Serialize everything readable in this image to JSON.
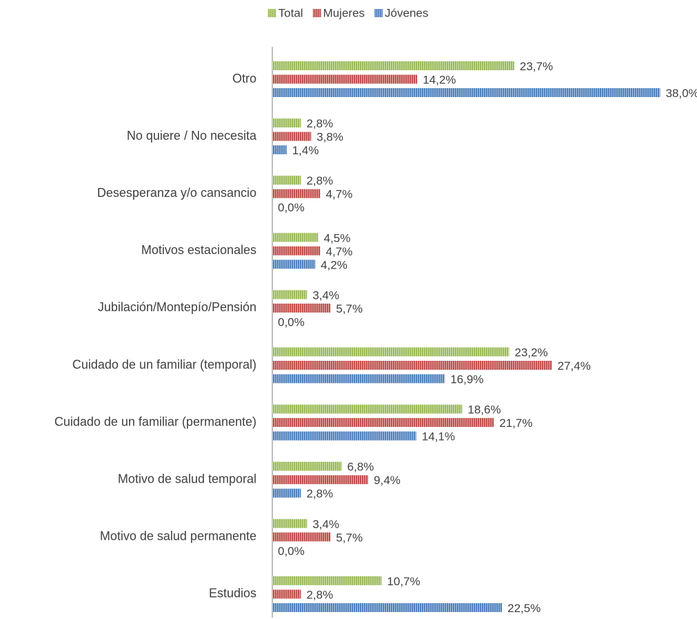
{
  "chart_data": {
    "type": "bar",
    "orientation": "horizontal",
    "categories": [
      "Otro",
      "No quiere / No necesita",
      "Desesperanza y/o cansancio",
      "Motivos estacionales",
      "Jubilación/Montepío/Pensión",
      "Cuidado de un familiar (temporal)",
      "Cuidado de un familiar (permanente)",
      "Motivo de salud temporal",
      "Motivo de salud permanente",
      "Estudios"
    ],
    "series": [
      {
        "name": "Total",
        "color": "#9bbb59",
        "values": [
          23.7,
          2.8,
          2.8,
          4.5,
          3.4,
          23.2,
          18.6,
          6.8,
          3.4,
          10.7
        ],
        "value_labels": [
          "23,7%",
          "2,8%",
          "2,8%",
          "4,5%",
          "3,4%",
          "23,2%",
          "18,6%",
          "6,8%",
          "3,4%",
          "10,7%"
        ]
      },
      {
        "name": "Mujeres",
        "color": "#c0504d",
        "values": [
          14.2,
          3.8,
          4.7,
          4.7,
          5.7,
          27.4,
          21.7,
          9.4,
          5.7,
          2.8
        ],
        "value_labels": [
          "14,2%",
          "3,8%",
          "4,7%",
          "4,7%",
          "5,7%",
          "27,4%",
          "21,7%",
          "9,4%",
          "5,7%",
          "2,8%"
        ]
      },
      {
        "name": "Jóvenes",
        "color": "#4f81bd",
        "values": [
          38.0,
          1.4,
          0.0,
          4.2,
          0.0,
          16.9,
          14.1,
          2.8,
          0.0,
          22.5
        ],
        "value_labels": [
          "38,0%",
          "1,4%",
          "0,0%",
          "4,2%",
          "0,0%",
          "16,9%",
          "14,1%",
          "2,8%",
          "0,0%",
          "22,5%"
        ]
      }
    ],
    "xlim": [
      0,
      41
    ],
    "legend": "top"
  }
}
